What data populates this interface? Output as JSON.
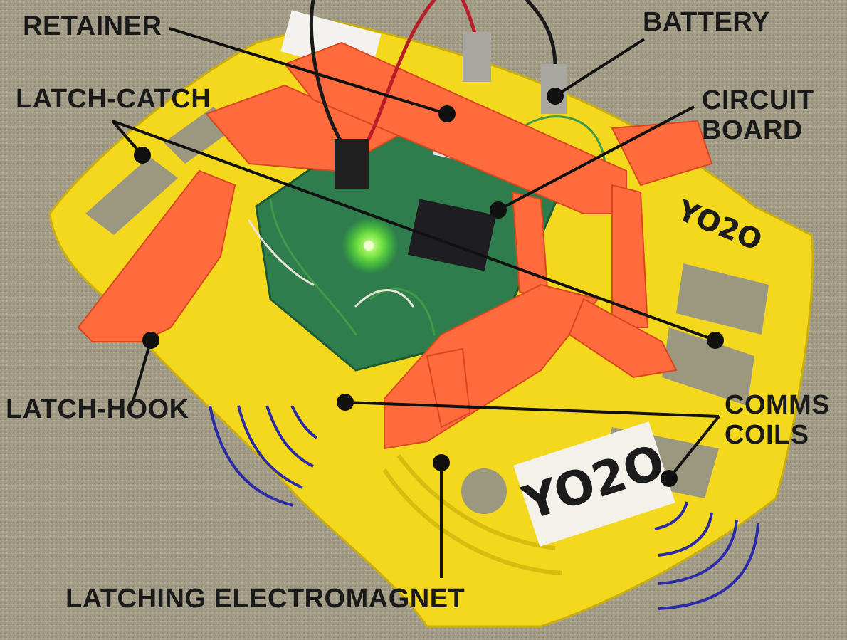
{
  "labels": {
    "retainer": "RETAINER",
    "battery": "BATTERY",
    "latch_catch": "LATCH-CATCH",
    "circuit_board_line1": "CIRCUIT",
    "circuit_board_line2": "BOARD",
    "latch_hook": "LATCH-HOOK",
    "comms_coils_line1": "COMMS",
    "comms_coils_line2": "COILS",
    "latching_electromagnet": "LATCHING ELECTROMAGNET"
  },
  "tag_text": "YO2O",
  "colors": {
    "background": "#a09a86",
    "frame": "#f2d51c",
    "retainer": "#ff6a3c",
    "board": "#2e7a4a",
    "pointer": "#111111",
    "wave": "#2a2aa8"
  }
}
